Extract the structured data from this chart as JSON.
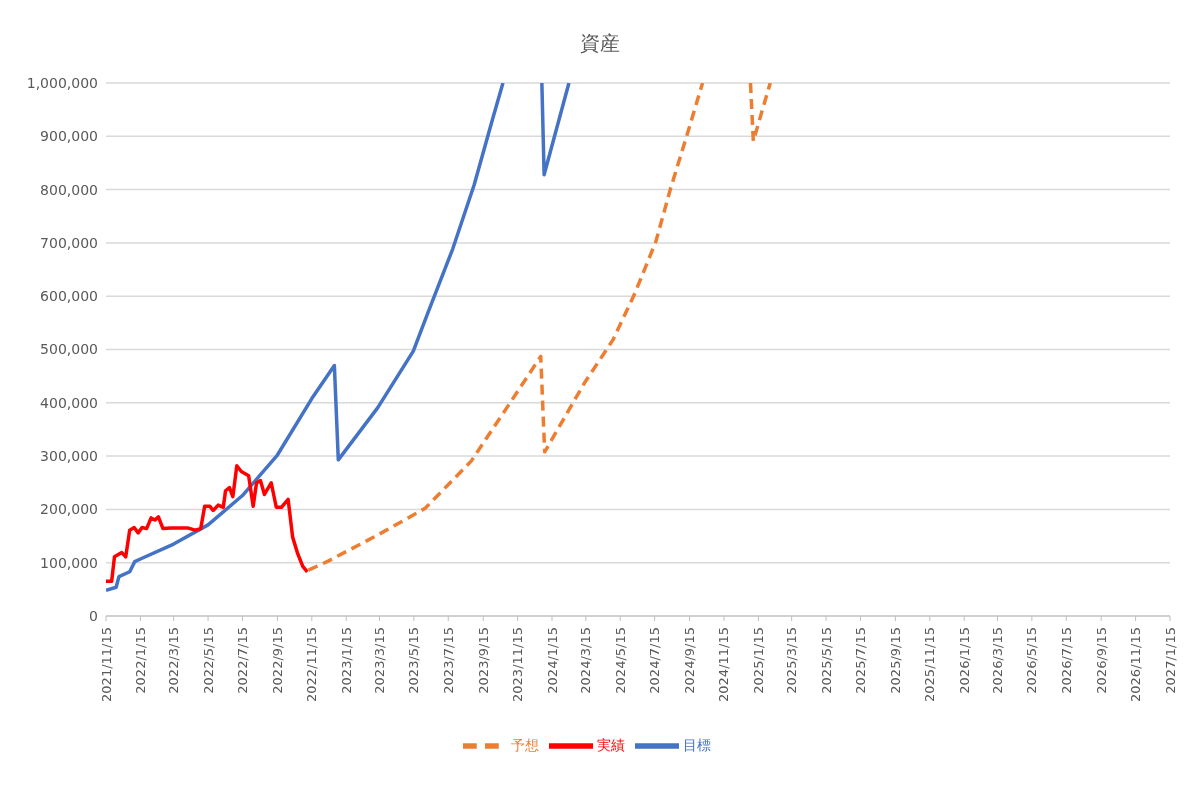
{
  "chart_data": {
    "type": "line",
    "title": "資産",
    "xlim": [
      "2021-11-15",
      "2027-01-15"
    ],
    "xticks": [
      {
        "value": "2021-11-15",
        "label": "2021/11/15"
      },
      {
        "value": "2022-01-15",
        "label": "2022/1/15"
      },
      {
        "value": "2022-03-15",
        "label": "2022/3/15"
      },
      {
        "value": "2022-05-15",
        "label": "2022/5/15"
      },
      {
        "value": "2022-07-15",
        "label": "2022/7/15"
      },
      {
        "value": "2022-09-15",
        "label": "2022/9/15"
      },
      {
        "value": "2022-11-15",
        "label": "2022/11/15"
      },
      {
        "value": "2023-01-15",
        "label": "2023/1/15"
      },
      {
        "value": "2023-03-15",
        "label": "2023/3/15"
      },
      {
        "value": "2023-05-15",
        "label": "2023/5/15"
      },
      {
        "value": "2023-07-15",
        "label": "2023/7/15"
      },
      {
        "value": "2023-09-15",
        "label": "2023/9/15"
      },
      {
        "value": "2023-11-15",
        "label": "2023/11/15"
      },
      {
        "value": "2024-01-15",
        "label": "2024/1/15"
      },
      {
        "value": "2024-03-15",
        "label": "2024/3/15"
      },
      {
        "value": "2024-05-15",
        "label": "2024/5/15"
      },
      {
        "value": "2024-07-15",
        "label": "2024/7/15"
      },
      {
        "value": "2024-09-15",
        "label": "2024/9/15"
      },
      {
        "value": "2024-11-15",
        "label": "2024/11/15"
      },
      {
        "value": "2025-01-15",
        "label": "2025/1/15"
      },
      {
        "value": "2025-03-15",
        "label": "2025/3/15"
      },
      {
        "value": "2025-05-15",
        "label": "2025/5/15"
      },
      {
        "value": "2025-07-15",
        "label": "2025/7/15"
      },
      {
        "value": "2025-09-15",
        "label": "2025/9/15"
      },
      {
        "value": "2025-11-15",
        "label": "2025/11/15"
      },
      {
        "value": "2026-01-15",
        "label": "2026/1/15"
      },
      {
        "value": "2026-03-15",
        "label": "2026/3/15"
      },
      {
        "value": "2026-05-15",
        "label": "2026/5/15"
      },
      {
        "value": "2026-07-15",
        "label": "2026/7/15"
      },
      {
        "value": "2026-09-15",
        "label": "2026/9/15"
      },
      {
        "value": "2026-11-15",
        "label": "2026/11/15"
      },
      {
        "value": "2027-01-15",
        "label": "2027/1/15"
      }
    ],
    "ylim": [
      0,
      1000000
    ],
    "yticks": [
      {
        "value": 0,
        "label": "0"
      },
      {
        "value": 100000,
        "label": "100,000"
      },
      {
        "value": 200000,
        "label": "200,000"
      },
      {
        "value": 300000,
        "label": "300,000"
      },
      {
        "value": 400000,
        "label": "400,000"
      },
      {
        "value": 500000,
        "label": "500,000"
      },
      {
        "value": 600000,
        "label": "600,000"
      },
      {
        "value": 700000,
        "label": "700,000"
      },
      {
        "value": 800000,
        "label": "800,000"
      },
      {
        "value": 900000,
        "label": "900,000"
      },
      {
        "value": 1000000,
        "label": "1,000,000"
      }
    ],
    "grid": "y",
    "legend": "bottom",
    "marker": "none",
    "series": [
      {
        "name": "目標",
        "color": "#4472c4",
        "line_style": "solid",
        "x": [
          "2021-11-15",
          "2021-12-03",
          "2021-12-08",
          "2021-12-27",
          "2022-01-05",
          "2022-01-15",
          "2022-03-15",
          "2022-05-15",
          "2022-07-15",
          "2022-09-15",
          "2022-11-15",
          "2022-12-25",
          "2023-01-01",
          "2023-03-12",
          "2023-05-14",
          "2023-06-09",
          "2023-07-23",
          "2023-08-30",
          "2023-10-01",
          "2023-10-20",
          "2023-11-20",
          "2023-12-28",
          "2024-01-01",
          "2024-02-14"
        ],
        "values": [
          48000,
          54000,
          74000,
          83000,
          102000,
          107000,
          135000,
          171000,
          226000,
          302000,
          408000,
          470000,
          293000,
          391000,
          497000,
          569000,
          689000,
          809000,
          930000,
          1000000,
          null,
          1000000,
          828000,
          1000000
        ]
      },
      {
        "name": "実績",
        "color": "#ff0000",
        "line_style": "solid",
        "x": [
          "2021-11-15",
          "2021-11-25",
          "2021-11-30",
          "2021-12-13",
          "2021-12-20",
          "2021-12-27",
          "2022-01-04",
          "2022-01-11",
          "2022-01-18",
          "2022-01-26",
          "2022-02-03",
          "2022-02-10",
          "2022-02-16",
          "2022-02-24",
          "2022-03-11",
          "2022-04-10",
          "2022-04-22",
          "2022-05-02",
          "2022-05-09",
          "2022-05-18",
          "2022-05-24",
          "2022-06-02",
          "2022-06-11",
          "2022-06-15",
          "2022-06-22",
          "2022-06-28",
          "2022-07-05",
          "2022-07-13",
          "2022-07-26",
          "2022-08-03",
          "2022-08-09",
          "2022-08-16",
          "2022-08-23",
          "2022-09-04",
          "2022-09-13",
          "2022-09-22",
          "2022-10-04",
          "2022-10-12",
          "2022-10-21",
          "2022-10-30",
          "2022-11-07"
        ],
        "values": [
          65000,
          65000,
          111000,
          119000,
          111000,
          161000,
          166000,
          156000,
          166000,
          164000,
          184000,
          180000,
          186000,
          164000,
          165000,
          165000,
          161000,
          164000,
          206000,
          206000,
          198000,
          208000,
          204000,
          235000,
          241000,
          224000,
          282000,
          271000,
          263000,
          206000,
          250000,
          254000,
          228000,
          250000,
          204000,
          204000,
          219000,
          148000,
          117000,
          93000,
          83000
        ]
      },
      {
        "name": "予想",
        "color": "#ed7d31",
        "line_style": "dashed",
        "x": [
          "2022-11-09",
          "2022-12-14",
          "2023-03-12",
          "2023-06-04",
          "2023-08-25",
          "2023-10-27",
          "2023-12-26",
          "2024-01-02",
          "2024-03-13",
          "2024-05-02",
          "2024-06-09",
          "2024-07-17",
          "2024-08-12",
          "2024-09-12",
          "2024-10-08",
          "2024-11-20",
          "2025-01-01",
          "2025-01-06",
          "2025-02-05"
        ],
        "values": [
          86000,
          103000,
          152000,
          202000,
          291000,
          391000,
          487000,
          308000,
          438000,
          518000,
          603000,
          702000,
          801000,
          908000,
          1000000,
          null,
          1000000,
          891000,
          1000000
        ]
      }
    ]
  }
}
